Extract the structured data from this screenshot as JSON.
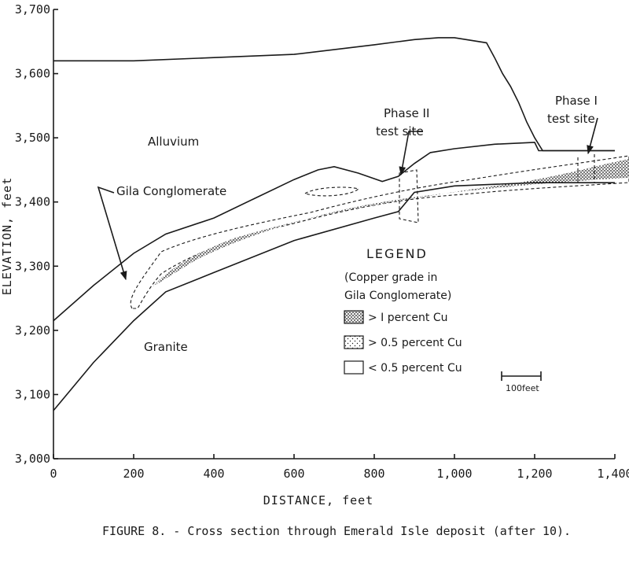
{
  "chart_data": {
    "type": "diagram",
    "xlabel": "DISTANCE, feet",
    "ylabel": "ELEVATION, feet",
    "x_ticks": [
      "0",
      "200",
      "400",
      "600",
      "800",
      "1,000",
      "1,200",
      "1,400"
    ],
    "y_ticks": [
      "3,000",
      "3,100",
      "3,200",
      "3,300",
      "3,400",
      "3,500",
      "3,600",
      "3,700"
    ],
    "xlim": [
      0,
      1400
    ],
    "ylim": [
      3000,
      3700
    ],
    "regions": {
      "alluvium": "Alluvium",
      "gila": "Gila Conglomerate",
      "granite": "Granite"
    },
    "sites": {
      "phase2_line1": "Phase II",
      "phase2_line2": "test site",
      "phase1_line1": "Phase I",
      "phase1_line2": "test site"
    },
    "legend": {
      "title": "LEGEND",
      "subtitle_line1": "(Copper grade in",
      "subtitle_line2": "Gila Conglomerate)",
      "items": [
        {
          "label": "> I percent Cu",
          "pattern": "dense"
        },
        {
          "label": "> 0.5 percent Cu",
          "pattern": "sparse"
        },
        {
          "label": "< 0.5 percent Cu",
          "pattern": "none"
        }
      ]
    },
    "scale_bar": "100feet",
    "surface_profile": {
      "x": [
        0,
        200,
        400,
        600,
        800,
        900,
        960,
        1000,
        1080,
        1100,
        1120,
        1140,
        1160,
        1170,
        1180,
        1200,
        1220,
        1400
      ],
      "y": [
        3620,
        3620,
        3625,
        3630,
        3645,
        3653,
        3656,
        3656,
        3648,
        3625,
        3600,
        3580,
        3555,
        3540,
        3525,
        3500,
        3480,
        3480
      ]
    },
    "alluvium_base": {
      "x": [
        0,
        100,
        200,
        280,
        400,
        500,
        600,
        660,
        700,
        760,
        820,
        860,
        900,
        940,
        1000,
        1100,
        1200,
        1210,
        1400
      ],
      "y": [
        3215,
        3270,
        3320,
        3350,
        3375,
        3405,
        3435,
        3450,
        3455,
        3445,
        3432,
        3440,
        3460,
        3477,
        3483,
        3490,
        3493,
        3480,
        3480
      ]
    },
    "granite_top": {
      "x": [
        0,
        100,
        200,
        280,
        400,
        600,
        800,
        860,
        900,
        1000,
        1200,
        1400
      ],
      "y": [
        3075,
        3150,
        3215,
        3260,
        3290,
        3340,
        3375,
        3385,
        3415,
        3425,
        3430,
        3430
      ]
    }
  },
  "caption": "FIGURE 8. - Cross section through Emerald Isle deposit (after 10)."
}
